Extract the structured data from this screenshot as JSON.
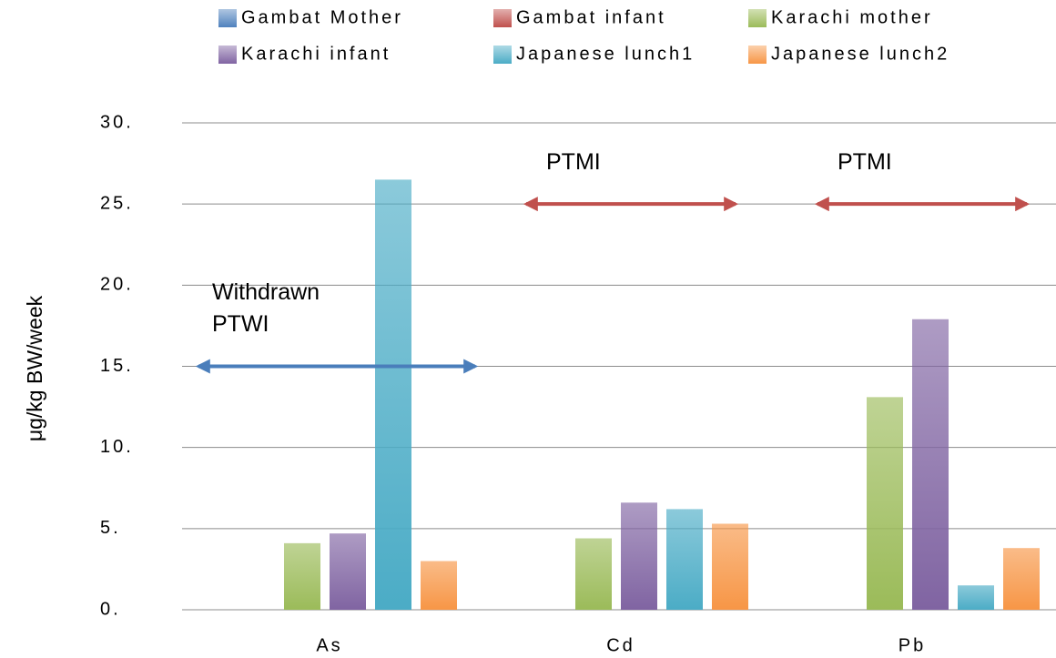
{
  "chart_data": {
    "type": "bar",
    "y_label": "μg/kg BW/week",
    "categories": [
      "As",
      "Cd",
      "Pb"
    ],
    "series": [
      {
        "name": "Gambat Mother",
        "color": "#4f81bd",
        "values": [
          null,
          null,
          null
        ]
      },
      {
        "name": "Gambat infant",
        "color": "#c0504d",
        "values": [
          null,
          null,
          null
        ]
      },
      {
        "name": "Karachi mother",
        "color": "#9bbb59",
        "values": [
          4.1,
          4.4,
          13.1
        ]
      },
      {
        "name": "Karachi infant",
        "color": "#8064a2",
        "values": [
          4.7,
          6.6,
          17.9
        ]
      },
      {
        "name": "Japanese lunch1",
        "color": "#4bacc6",
        "values": [
          26.5,
          6.2,
          1.5
        ]
      },
      {
        "name": "Japanese lunch2",
        "color": "#f79646",
        "values": [
          3.0,
          5.3,
          3.8
        ]
      }
    ],
    "ylim": [
      0,
      30
    ],
    "yticks": [
      {
        "value": 0,
        "label": "0."
      },
      {
        "value": 5,
        "label": "5."
      },
      {
        "value": 10,
        "label": "10."
      },
      {
        "value": 15,
        "label": "15."
      },
      {
        "value": 20,
        "label": "20."
      },
      {
        "value": 25,
        "label": "25."
      },
      {
        "value": 30,
        "label": "30."
      }
    ],
    "grid": true,
    "legend": "top",
    "annotations": [
      {
        "text": [
          "Withdrawn",
          "PTWI"
        ],
        "value": 15,
        "category": "As",
        "color": "#4a7ebb"
      },
      {
        "text": [
          "PTMI"
        ],
        "value": 25,
        "category": "Cd",
        "color": "#c0504d"
      },
      {
        "text": [
          "PTMI"
        ],
        "value": 25,
        "category": "Pb",
        "color": "#c0504d"
      }
    ]
  }
}
